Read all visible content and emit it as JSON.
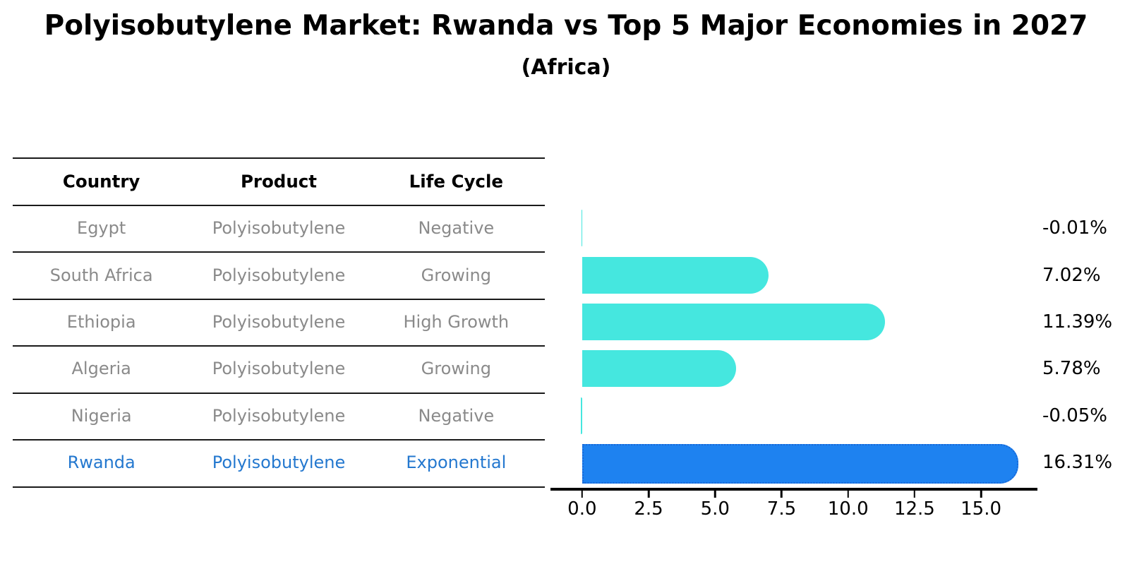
{
  "title": "Polyisobutylene Market: Rwanda vs Top 5 Major Economies in 2027",
  "subtitle": "(Africa)",
  "table": {
    "headers": [
      "Country",
      "Product",
      "Life Cycle"
    ],
    "rows": [
      {
        "country": "Egypt",
        "product": "Polyisobutylene",
        "life_cycle": "Negative",
        "highlight": false
      },
      {
        "country": "South Africa",
        "product": "Polyisobutylene",
        "life_cycle": "Growing",
        "highlight": false
      },
      {
        "country": "Ethiopia",
        "product": "Polyisobutylene",
        "life_cycle": "High Growth",
        "highlight": false
      },
      {
        "country": "Algeria",
        "product": "Polyisobutylene",
        "life_cycle": "Growing",
        "highlight": false
      },
      {
        "country": "Nigeria",
        "product": "Polyisobutylene",
        "life_cycle": "Negative",
        "highlight": false
      },
      {
        "country": "Rwanda",
        "product": "Polyisobutylene",
        "life_cycle": "Exponential",
        "highlight": true
      }
    ]
  },
  "chart_data": {
    "type": "bar",
    "orientation": "horizontal",
    "title": "Polyisobutylene Market: Rwanda vs Top 5 Major Economies in 2027 (Africa)",
    "categories": [
      "Egypt",
      "South Africa",
      "Ethiopia",
      "Algeria",
      "Nigeria",
      "Rwanda"
    ],
    "values": [
      -0.01,
      7.02,
      11.39,
      5.78,
      -0.05,
      16.31
    ],
    "value_labels": [
      "-0.01%",
      "7.02%",
      "11.39%",
      "5.78%",
      "-0.05%",
      "16.31%"
    ],
    "x_ticks": [
      0.0,
      2.5,
      5.0,
      7.5,
      10.0,
      12.5,
      15.0
    ],
    "x_tick_labels": [
      "0.0",
      "2.5",
      "5.0",
      "7.5",
      "10.0",
      "12.5",
      "15.0"
    ],
    "xlim": [
      -1.19,
      17.12
    ],
    "grid": false,
    "legend": "none",
    "xlabel": "",
    "ylabel": "",
    "unit": "%",
    "highlight_index": 5,
    "bar_color": "#45e7df",
    "highlight_bar_color": "#1e82f0",
    "highlight_border_color": "#1868d8"
  },
  "colors": {
    "header_text": "#000000",
    "row_text": "#8a8a8a",
    "highlight_text": "#2478cf",
    "axis": "#000000",
    "background": "#ffffff"
  }
}
